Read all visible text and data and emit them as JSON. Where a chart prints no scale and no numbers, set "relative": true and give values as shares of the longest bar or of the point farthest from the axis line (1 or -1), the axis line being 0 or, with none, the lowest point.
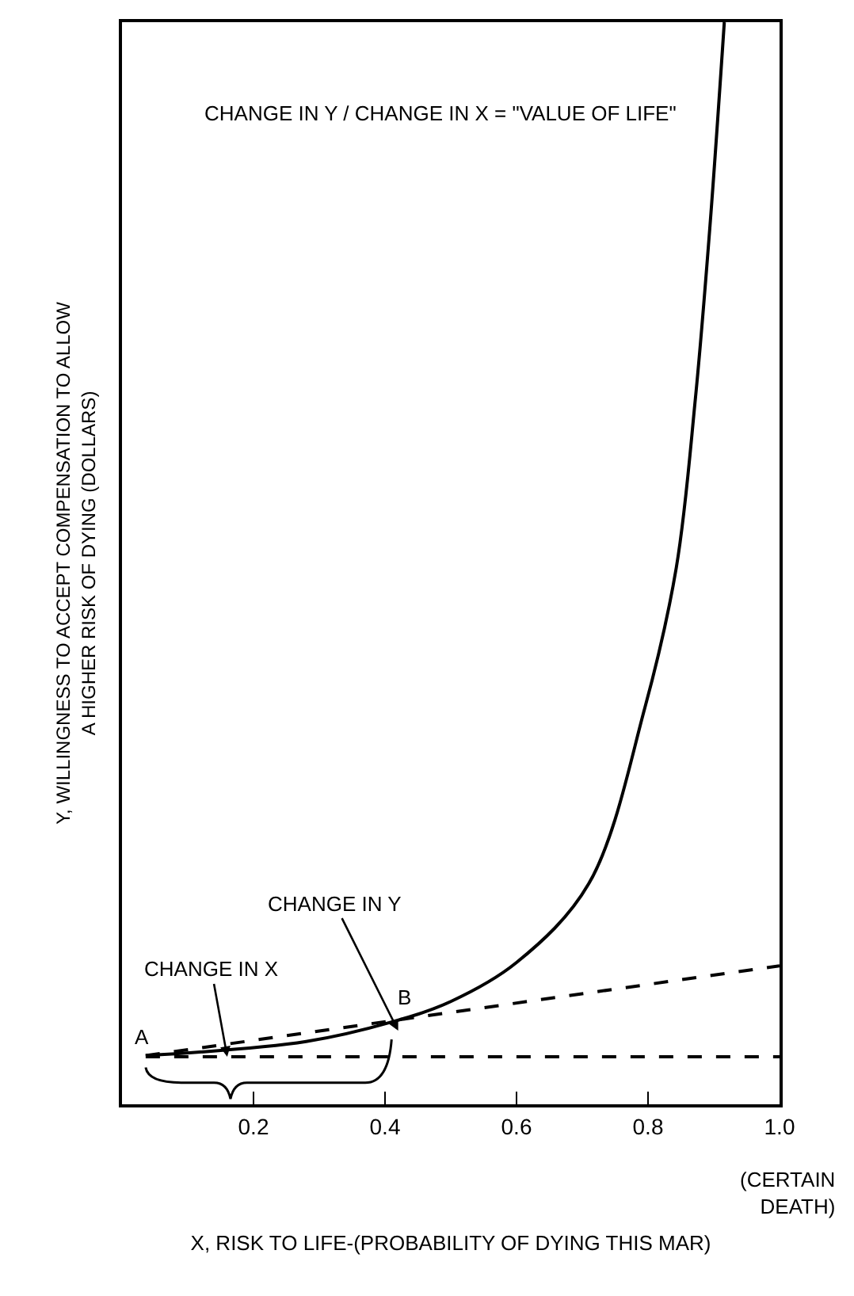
{
  "chart_data": {
    "type": "line",
    "relative": true,
    "xlabel": "X, RISK TO LIFE-(PROBABILITY OF DYING THIS MAR)",
    "ylabel": "Y, WILLINGNESS TO ACCEPT COMPENSATION TO ALLOW\nA HIGHER RISK OF DYING (DOLLARS)",
    "xlim": [
      0,
      1
    ],
    "xticks": [
      0.2,
      0.4,
      0.6,
      0.8,
      {
        "value": 1,
        "label": "1.0"
      }
    ],
    "tick_labels": "x",
    "marker": "none",
    "series": [
      {
        "color": "#000000",
        "line_style": "solid",
        "x": [
          0.036,
          0.28,
          0.41,
          0.5,
          0.6,
          0.71,
          0.795,
          0.843,
          0.872,
          0.894,
          0.916
        ],
        "values": [
          0.045,
          0.058,
          0.076,
          0.095,
          0.131,
          0.204,
          0.366,
          0.496,
          0.652,
          0.81,
          1.0
        ]
      },
      {
        "color": "#000000",
        "line_style": "dashed",
        "x": [
          0.036,
          1.0
        ],
        "values": [
          0.045,
          0.128
        ]
      },
      {
        "color": "#000000",
        "line_style": "dashed",
        "x": [
          0.036,
          1.0
        ],
        "values": [
          0.044,
          0.044
        ]
      }
    ],
    "annotations": [
      "CHANGE IN Y / CHANGE IN X = \"VALUE OF LIFE\"",
      {
        "text": "A",
        "x": 0.036,
        "y": 0.045
      },
      {
        "text": "B",
        "x": 0.41,
        "y": 0.076
      },
      {
        "text": "CHANGE IN X",
        "x": 0.16,
        "y": 0.044
      },
      "CHANGE IN Y",
      "(CERTAIN DEATH)"
    ]
  }
}
